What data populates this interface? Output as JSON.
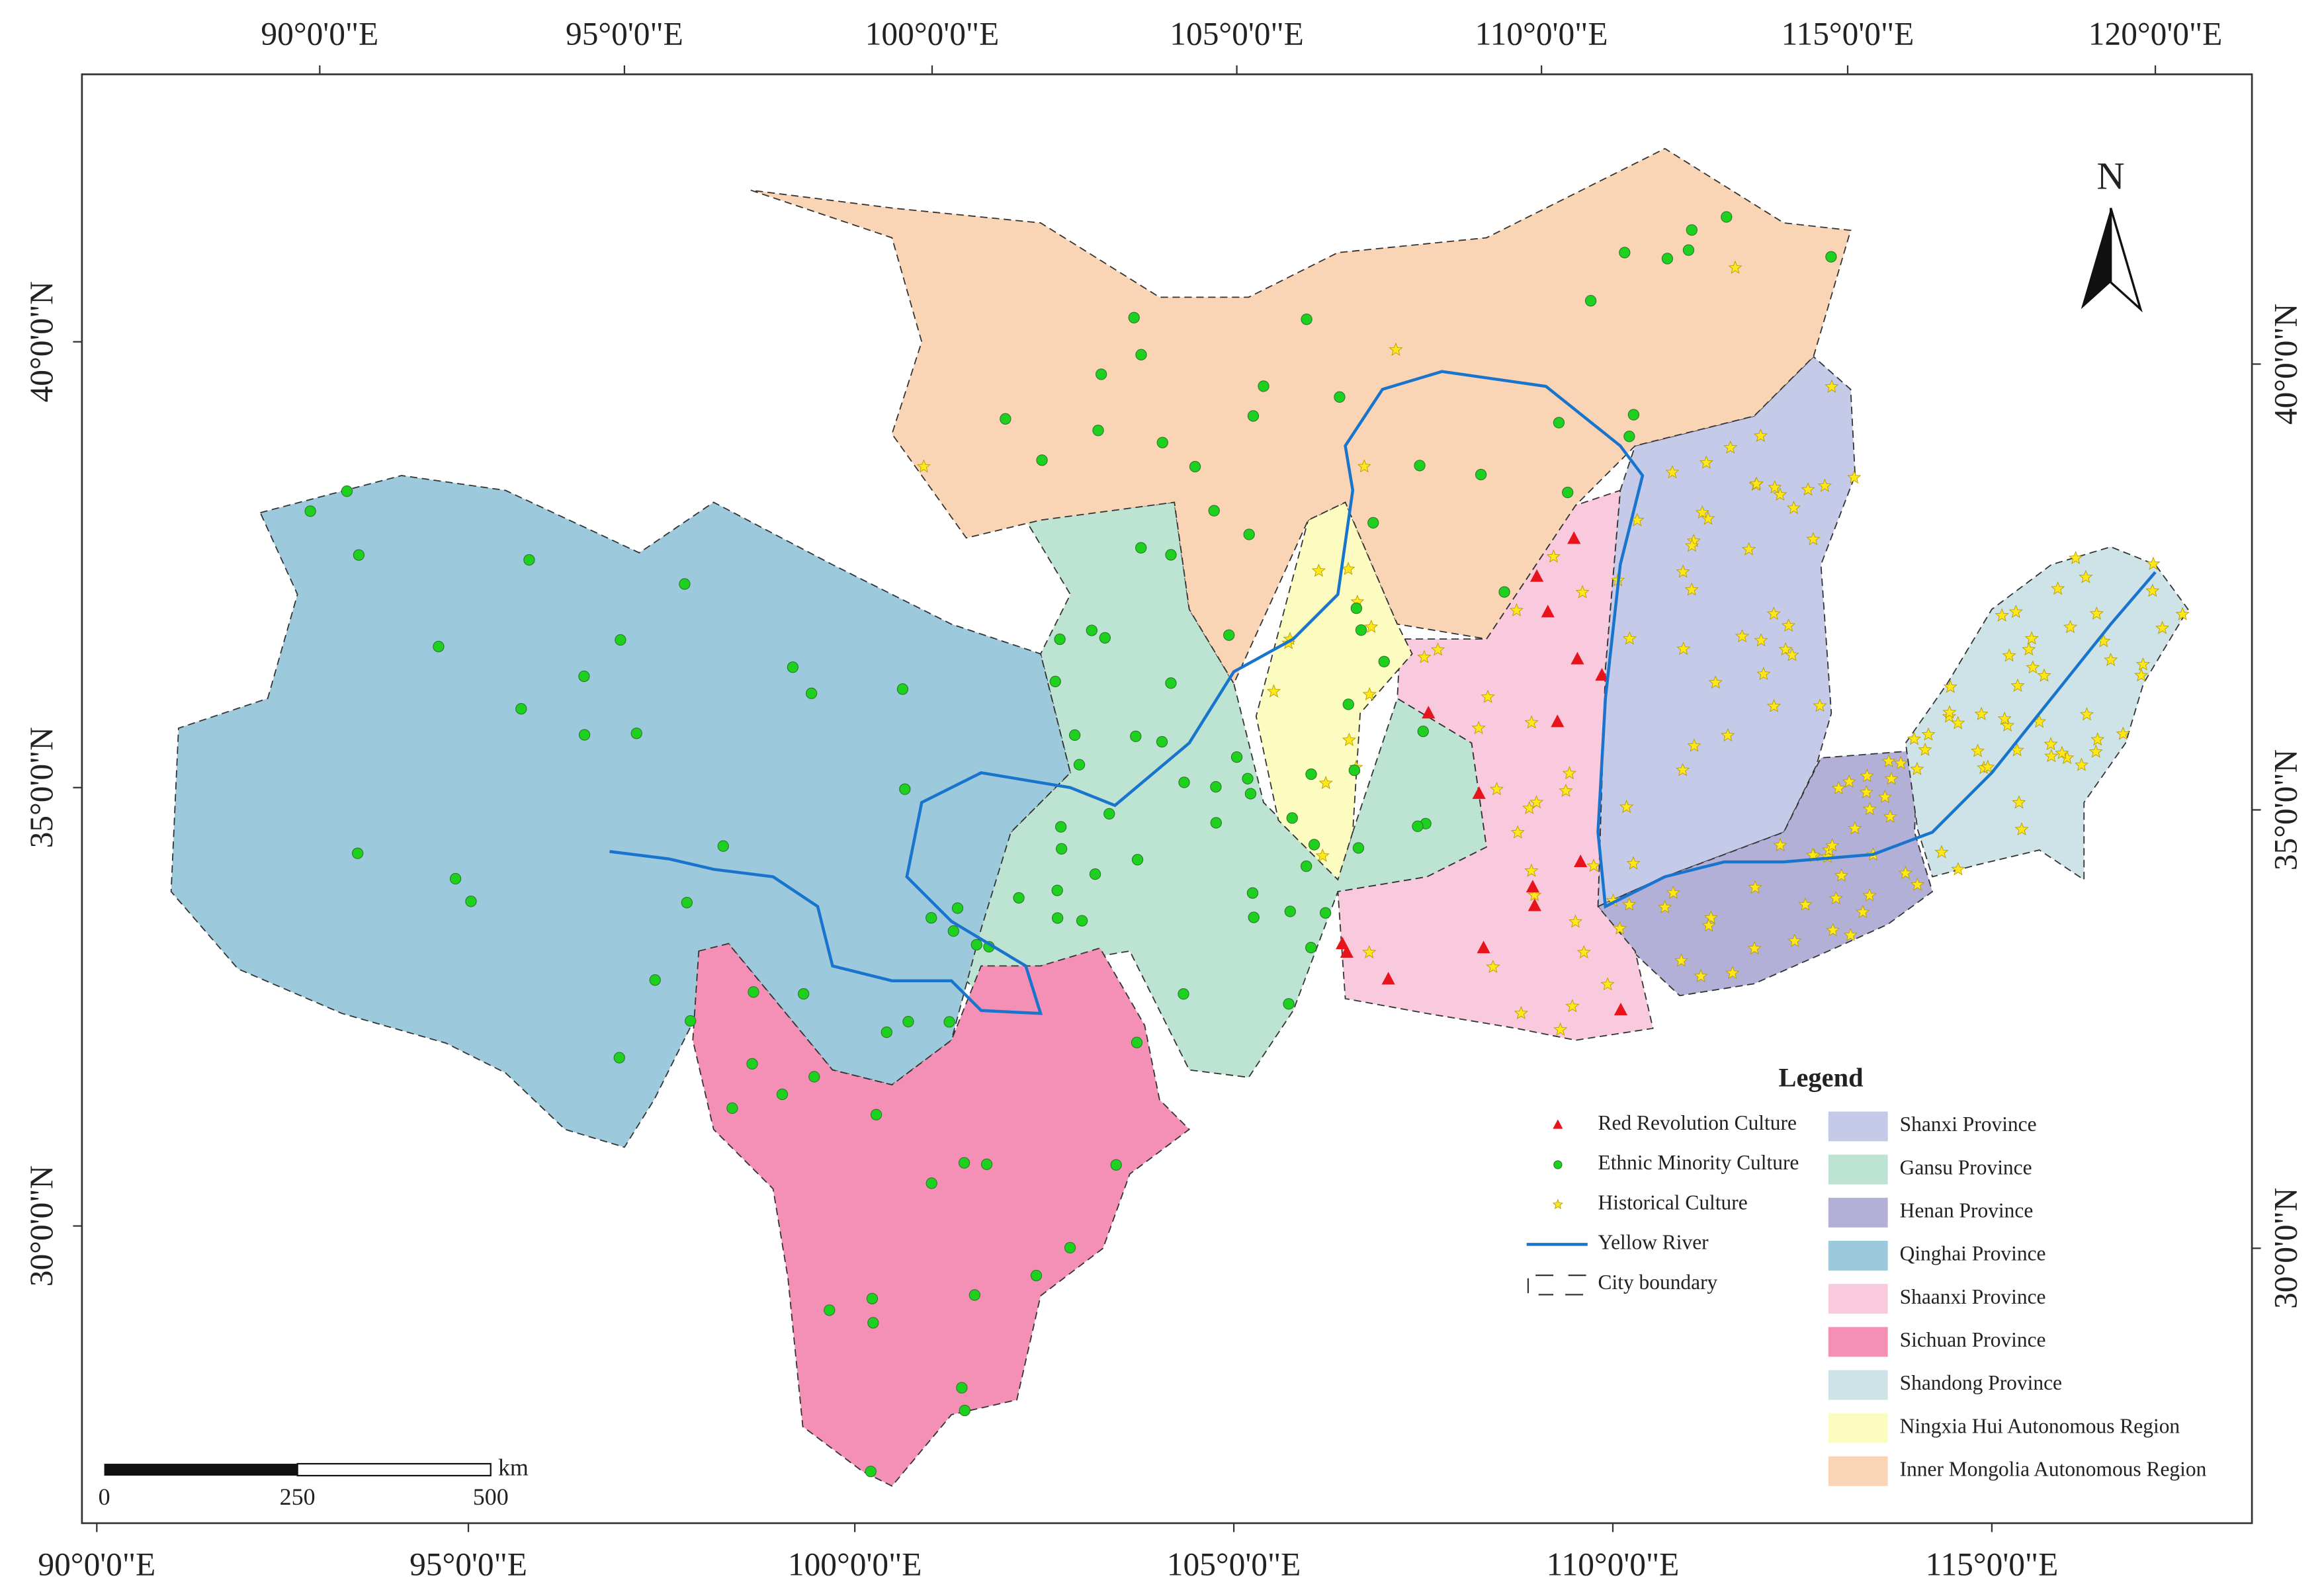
{
  "graticule": {
    "top_labels": [
      "90°0'0\"E",
      "95°0'0\"E",
      "100°0'0\"E",
      "105°0'0\"E",
      "110°0'0\"E",
      "115°0'0\"E",
      "120°0'0\"E"
    ],
    "bottom_labels": [
      "90°0'0\"E",
      "95°0'0\"E",
      "100°0'0\"E",
      "105°0'0\"E",
      "110°0'0\"E",
      "115°0'0\"E"
    ],
    "left_labels": [
      "40°0'0\"N",
      "35°0'0\"N",
      "30°0'0\"N"
    ],
    "right_labels": [
      "40°0'0\"N",
      "35°0'0\"N",
      "30°0'0\"N"
    ]
  },
  "north": "N",
  "legend": {
    "title": "Legend",
    "symbols": [
      {
        "label": "Red Revolution Culture",
        "color": "#e8141c"
      },
      {
        "label": "Ethnic Minority Culture",
        "color": "#1fd11f"
      },
      {
        "label": "Historical Culture",
        "color": "#ffe81a"
      },
      {
        "label": "Yellow River",
        "color": "#1874cd"
      },
      {
        "label": "City boundary",
        "color": "#333333"
      }
    ],
    "regions": [
      {
        "label": "Shanxi Province",
        "color": "#c5cae8"
      },
      {
        "label": "Gansu Province",
        "color": "#bde3d2"
      },
      {
        "label": "Henan Province",
        "color": "#b3b0d8"
      },
      {
        "label": "Qinghai Province",
        "color": "#9ccadc"
      },
      {
        "label": "Shaanxi Province",
        "color": "#f9c9dd"
      },
      {
        "label": "Sichuan Province",
        "color": "#f490b5"
      },
      {
        "label": "Shandong Province",
        "color": "#cde3e8"
      },
      {
        "label": "Ningxia Hui Autonomous Region",
        "color": "#fcfbc0"
      },
      {
        "label": "Inner Mongolia Autonomous Region",
        "color": "#f9d5b5"
      }
    ]
  },
  "scale_bar": {
    "labels": [
      "0",
      "250",
      "500"
    ],
    "unit": "km"
  }
}
